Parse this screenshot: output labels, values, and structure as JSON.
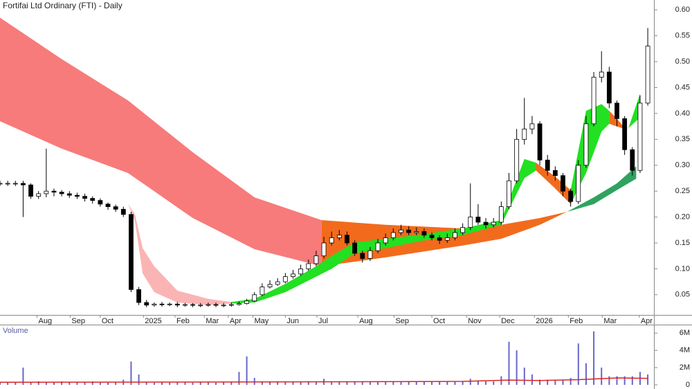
{
  "chart_data": [
    {
      "type": "candlestick",
      "title": "Fortifai Ltd Ordinary (FTI) - Daily",
      "x": [
        0,
        1,
        2,
        3,
        4,
        5,
        6,
        7,
        8,
        9,
        10,
        11,
        12,
        13,
        14,
        15,
        16,
        17,
        18,
        19,
        20,
        21,
        22,
        23,
        24,
        25,
        26,
        27,
        28,
        29,
        30,
        31,
        32,
        33,
        34,
        35,
        36,
        37,
        38,
        39,
        40,
        41,
        42,
        43,
        44,
        45,
        46,
        47,
        48,
        49,
        50,
        51,
        52,
        53,
        54,
        55,
        56,
        57,
        58,
        59,
        60,
        61,
        62,
        63,
        64,
        65,
        66,
        67,
        68,
        69,
        70,
        71,
        72,
        73,
        74,
        75,
        76,
        77,
        78,
        79,
        80,
        81,
        82,
        83,
        84
      ],
      "open": [
        0.265,
        0.265,
        0.265,
        0.265,
        0.262,
        0.24,
        0.245,
        0.25,
        0.248,
        0.245,
        0.242,
        0.24,
        0.236,
        0.232,
        0.225,
        0.22,
        0.215,
        0.205,
        0.06,
        0.035,
        0.03,
        0.032,
        0.031,
        0.032,
        0.03,
        0.031,
        0.03,
        0.03,
        0.031,
        0.03,
        0.03,
        0.031,
        0.033,
        0.038,
        0.05,
        0.065,
        0.07,
        0.075,
        0.085,
        0.09,
        0.1,
        0.11,
        0.125,
        0.15,
        0.16,
        0.165,
        0.15,
        0.13,
        0.12,
        0.135,
        0.15,
        0.16,
        0.17,
        0.175,
        0.17,
        0.172,
        0.165,
        0.16,
        0.155,
        0.16,
        0.17,
        0.18,
        0.2,
        0.19,
        0.185,
        0.19,
        0.22,
        0.27,
        0.35,
        0.37,
        0.38,
        0.31,
        0.29,
        0.28,
        0.25,
        0.23,
        0.3,
        0.38,
        0.47,
        0.48,
        0.42,
        0.39,
        0.33,
        0.29,
        0.42
      ],
      "high": [
        0.27,
        0.27,
        0.27,
        0.27,
        0.265,
        0.25,
        0.332,
        0.255,
        0.252,
        0.25,
        0.247,
        0.245,
        0.24,
        0.236,
        0.228,
        0.224,
        0.22,
        0.21,
        0.065,
        0.04,
        0.035,
        0.036,
        0.035,
        0.036,
        0.034,
        0.034,
        0.034,
        0.035,
        0.035,
        0.034,
        0.035,
        0.037,
        0.042,
        0.055,
        0.072,
        0.078,
        0.082,
        0.092,
        0.098,
        0.108,
        0.118,
        0.135,
        0.162,
        0.172,
        0.175,
        0.172,
        0.155,
        0.135,
        0.142,
        0.158,
        0.168,
        0.178,
        0.185,
        0.182,
        0.18,
        0.178,
        0.17,
        0.165,
        0.168,
        0.178,
        0.188,
        0.265,
        0.225,
        0.198,
        0.198,
        0.23,
        0.285,
        0.37,
        0.43,
        0.395,
        0.385,
        0.32,
        0.298,
        0.285,
        0.255,
        0.31,
        0.395,
        0.48,
        0.52,
        0.49,
        0.425,
        0.395,
        0.335,
        0.435,
        0.565
      ],
      "low": [
        0.26,
        0.26,
        0.26,
        0.2,
        0.235,
        0.235,
        0.238,
        0.24,
        0.24,
        0.237,
        0.235,
        0.23,
        0.226,
        0.22,
        0.214,
        0.21,
        0.2,
        0.055,
        0.03,
        0.026,
        0.027,
        0.027,
        0.028,
        0.026,
        0.027,
        0.026,
        0.026,
        0.027,
        0.026,
        0.026,
        0.027,
        0.029,
        0.031,
        0.036,
        0.047,
        0.062,
        0.067,
        0.072,
        0.081,
        0.086,
        0.096,
        0.105,
        0.12,
        0.145,
        0.155,
        0.145,
        0.125,
        0.112,
        0.115,
        0.13,
        0.145,
        0.155,
        0.165,
        0.165,
        0.165,
        0.16,
        0.155,
        0.148,
        0.15,
        0.155,
        0.165,
        0.175,
        0.185,
        0.178,
        0.18,
        0.185,
        0.215,
        0.265,
        0.34,
        0.36,
        0.3,
        0.28,
        0.27,
        0.24,
        0.22,
        0.225,
        0.295,
        0.375,
        0.46,
        0.41,
        0.375,
        0.32,
        0.28,
        0.285,
        0.415
      ],
      "close": [
        0.265,
        0.265,
        0.265,
        0.262,
        0.24,
        0.245,
        0.25,
        0.248,
        0.245,
        0.242,
        0.24,
        0.236,
        0.232,
        0.225,
        0.22,
        0.215,
        0.205,
        0.06,
        0.035,
        0.03,
        0.032,
        0.031,
        0.032,
        0.03,
        0.031,
        0.03,
        0.03,
        0.031,
        0.03,
        0.03,
        0.031,
        0.033,
        0.038,
        0.05,
        0.065,
        0.07,
        0.075,
        0.085,
        0.09,
        0.1,
        0.11,
        0.125,
        0.15,
        0.16,
        0.165,
        0.15,
        0.13,
        0.12,
        0.135,
        0.15,
        0.16,
        0.17,
        0.175,
        0.17,
        0.172,
        0.165,
        0.16,
        0.155,
        0.16,
        0.17,
        0.18,
        0.2,
        0.19,
        0.185,
        0.19,
        0.22,
        0.27,
        0.35,
        0.37,
        0.38,
        0.31,
        0.29,
        0.28,
        0.25,
        0.23,
        0.3,
        0.38,
        0.47,
        0.48,
        0.42,
        0.39,
        0.33,
        0.29,
        0.42,
        0.53
      ],
      "bands": [
        {
          "color": "#f77b7b",
          "x": [
            0,
            8,
            16.6,
            25,
            33,
            41.7
          ],
          "upper": [
            0.585,
            0.505,
            0.425,
            0.325,
            0.238,
            0.194
          ],
          "lower": [
            0.385,
            0.332,
            0.285,
            0.198,
            0.138,
            0.105
          ]
        },
        {
          "color": "#f26b1d",
          "x": [
            41.7,
            50,
            60,
            65,
            70,
            73.5
          ],
          "upper": [
            0.194,
            0.185,
            0.178,
            0.185,
            0.198,
            0.21
          ],
          "lower": [
            0.105,
            0.122,
            0.145,
            0.158,
            0.185,
            0.21
          ]
        },
        {
          "color": "#2fa35f",
          "x": [
            73.5,
            77,
            80,
            82.5
          ],
          "upper": [
            0.21,
            0.238,
            0.265,
            0.298
          ],
          "lower": [
            0.21,
            0.225,
            0.252,
            0.274
          ]
        },
        {
          "color": "#fbb4b4",
          "x": [
            16.6,
            17.5,
            18.5,
            20,
            23,
            27,
            30
          ],
          "upper": [
            0.225,
            0.205,
            0.14,
            0.105,
            0.058,
            0.042,
            0.036
          ],
          "lower": [
            0.225,
            0.192,
            0.091,
            0.055,
            0.035,
            0.03,
            0.033
          ]
        },
        {
          "color": "#22e022",
          "x": [
            30,
            33,
            37,
            41,
            43,
            46,
            50,
            55,
            60,
            65,
            68,
            69.5
          ],
          "upper": [
            0.036,
            0.042,
            0.071,
            0.105,
            0.125,
            0.151,
            0.158,
            0.167,
            0.178,
            0.194,
            0.312,
            0.305
          ],
          "lower": [
            0.033,
            0.035,
            0.055,
            0.085,
            0.1,
            0.13,
            0.14,
            0.155,
            0.165,
            0.185,
            0.275,
            0.29
          ]
        },
        {
          "color": "#f26b1d",
          "x": [
            69.5,
            72,
            74
          ],
          "upper": [
            0.305,
            0.278,
            0.252
          ],
          "lower": [
            0.29,
            0.255,
            0.225
          ]
        },
        {
          "color": "#22e022",
          "x": [
            74,
            76,
            78,
            79
          ],
          "upper": [
            0.252,
            0.405,
            0.418,
            0.405
          ],
          "lower": [
            0.225,
            0.285,
            0.365,
            0.38
          ]
        },
        {
          "color": "#f26b1d",
          "x": [
            79,
            80,
            81,
            81.5
          ],
          "upper": [
            0.405,
            0.39,
            0.372,
            0.372
          ],
          "lower": [
            0.38,
            0.375,
            0.37,
            0.372
          ]
        },
        {
          "color": "#22e022",
          "x": [
            81.5,
            83
          ],
          "upper": [
            0.372,
            0.438
          ],
          "lower": [
            0.372,
            0.392
          ]
        }
      ],
      "xlim": [
        0,
        84.8
      ],
      "xticks": [
        {
          "value": 4.8,
          "label": "Aug"
        },
        {
          "value": 9.1,
          "label": "Sep"
        },
        {
          "value": 13.0,
          "label": "Oct"
        },
        {
          "value": 18.6,
          "label": "2025"
        },
        {
          "value": 22.7,
          "label": "Feb"
        },
        {
          "value": 26.5,
          "label": "Mar"
        },
        {
          "value": 29.6,
          "label": "Apr"
        },
        {
          "value": 32.8,
          "label": "May"
        },
        {
          "value": 37.0,
          "label": "Jun"
        },
        {
          "value": 41.1,
          "label": "Jul"
        },
        {
          "value": 46.4,
          "label": "Aug"
        },
        {
          "value": 51.1,
          "label": "Sep"
        },
        {
          "value": 56.0,
          "label": "Oct"
        },
        {
          "value": 60.5,
          "label": "Nov"
        },
        {
          "value": 64.8,
          "label": "Dec"
        },
        {
          "value": 69.3,
          "label": "2026"
        },
        {
          "value": 73.7,
          "label": "Feb"
        },
        {
          "value": 78.1,
          "label": "Mar"
        },
        {
          "value": 82.9,
          "label": "Apr"
        }
      ],
      "ylim": [
        0.011,
        0.619
      ],
      "yticks": [
        0.05,
        {
          "value": 0.1,
          "label": "0.10"
        },
        0.15,
        {
          "value": 0.2,
          "label": "0.20"
        },
        0.25,
        {
          "value": 0.3,
          "label": "0.30"
        },
        0.35,
        {
          "value": 0.4,
          "label": "0.40"
        },
        0.45,
        {
          "value": 0.5,
          "label": "0.50"
        },
        0.55,
        {
          "value": 0.6,
          "label": "0.60"
        }
      ]
    },
    {
      "type": "bar",
      "title": "Volume",
      "color": "#6666cc",
      "x": [
        0,
        1,
        2,
        3,
        4,
        5,
        6,
        7,
        8,
        9,
        10,
        11,
        12,
        13,
        14,
        15,
        16,
        17,
        18,
        19,
        20,
        21,
        22,
        23,
        24,
        25,
        26,
        27,
        28,
        29,
        30,
        31,
        32,
        33,
        34,
        35,
        36,
        37,
        38,
        39,
        40,
        41,
        42,
        43,
        44,
        45,
        46,
        47,
        48,
        49,
        50,
        51,
        52,
        53,
        54,
        55,
        56,
        57,
        58,
        59,
        60,
        61,
        62,
        63,
        64,
        65,
        66,
        67,
        68,
        69,
        70,
        71,
        72,
        73,
        74,
        75,
        76,
        77,
        78,
        79,
        80,
        81,
        82,
        83,
        84
      ],
      "values": [
        300000,
        300000,
        300000,
        2000000,
        300000,
        400000,
        300000,
        300000,
        400000,
        300000,
        300000,
        300000,
        400000,
        300000,
        300000,
        300000,
        600000,
        2700000,
        1200000,
        300000,
        250000,
        300000,
        250000,
        300000,
        300000,
        250000,
        300000,
        300000,
        250000,
        300000,
        300000,
        1500000,
        3300000,
        800000,
        400000,
        400000,
        400000,
        400000,
        400000,
        400000,
        400000,
        400000,
        700000,
        400000,
        400000,
        400000,
        400000,
        400000,
        400000,
        400000,
        400000,
        400000,
        400000,
        400000,
        400000,
        400000,
        400000,
        400000,
        400000,
        400000,
        400000,
        700000,
        400000,
        400000,
        400000,
        1000000,
        5000000,
        4000000,
        2000000,
        1200000,
        600000,
        600000,
        600000,
        600000,
        800000,
        4800000,
        2500000,
        6200000,
        2000000,
        1000000,
        1000000,
        1000000,
        1000000,
        1500000,
        1200000
      ],
      "ma_color": "#dd2222",
      "ma_x": [
        0,
        20,
        40,
        60,
        66,
        70,
        75,
        80,
        84
      ],
      "ma_values": [
        300000,
        320000,
        350000,
        400000,
        550000,
        500000,
        600000,
        800000,
        750000
      ],
      "xlim": [
        0,
        84.8
      ],
      "ylim": [
        0,
        6900000
      ],
      "yticks": [
        0,
        {
          "value": 2000000,
          "label": "2M"
        },
        {
          "value": 4000000,
          "label": "4M"
        },
        {
          "value": 6000000,
          "label": "6M"
        }
      ]
    }
  ]
}
